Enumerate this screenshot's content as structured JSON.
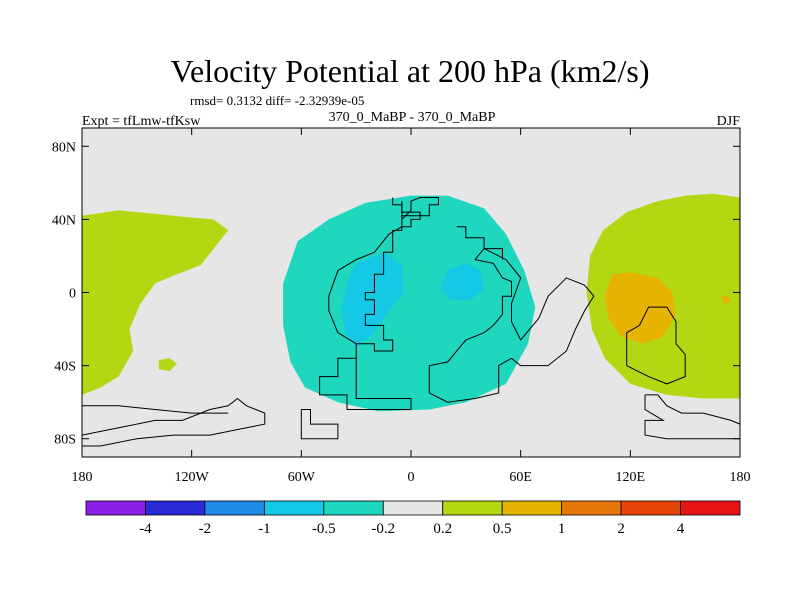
{
  "chart_data": {
    "type": "contour-map",
    "title": "Velocity Potential at 200 hPa (km2/s)",
    "stats_text": "rmsd= 0.3132 diff= -2.32939e-05",
    "left_label": "Expt = tfLmw-tfKsw",
    "center_label": "370_0_MaBP - 370_0_MaBP",
    "right_label": "DJF",
    "x_ticks": [
      "180",
      "120W",
      "60W",
      "0",
      "60E",
      "120E",
      "180"
    ],
    "x_tick_values": [
      -180,
      -120,
      -60,
      0,
      60,
      120,
      180
    ],
    "y_ticks": [
      "80N",
      "40N",
      "0",
      "40S",
      "80S"
    ],
    "y_tick_values": [
      80,
      40,
      0,
      -40,
      -80
    ],
    "lon_range": [
      -180,
      180
    ],
    "lat_range": [
      -90,
      90
    ],
    "colorbar": {
      "levels": [
        "-4",
        "-2",
        "-1",
        "-0.5",
        "-0.2",
        "0.2",
        "0.5",
        "1",
        "2",
        "4"
      ],
      "colors": [
        "#8c1ee6",
        "#2a2ad6",
        "#1e8ce6",
        "#14c8e6",
        "#1ed7be",
        "#e6e6e6",
        "#b4d714",
        "#e6b400",
        "#e6780a",
        "#e6460a",
        "#e61414"
      ]
    },
    "regions": [
      {
        "name": "positive-0.2-0.5-west",
        "color": "#b4d714",
        "points": [
          [
            -180,
            42
          ],
          [
            -160,
            45
          ],
          [
            -140,
            43
          ],
          [
            -120,
            41
          ],
          [
            -108,
            40
          ],
          [
            -100,
            34
          ],
          [
            -108,
            24
          ],
          [
            -115,
            15
          ],
          [
            -128,
            10
          ],
          [
            -140,
            5
          ],
          [
            -148,
            -6
          ],
          [
            -154,
            -20
          ],
          [
            -152,
            -32
          ],
          [
            -160,
            -46
          ],
          [
            -170,
            -52
          ],
          [
            -180,
            -56
          ]
        ]
      },
      {
        "name": "positive-0.2-0.5-east",
        "color": "#b4d714",
        "points": [
          [
            180,
            52
          ],
          [
            165,
            54
          ],
          [
            150,
            53
          ],
          [
            135,
            50
          ],
          [
            118,
            44
          ],
          [
            105,
            34
          ],
          [
            98,
            20
          ],
          [
            96,
            0
          ],
          [
            99,
            -20
          ],
          [
            106,
            -36
          ],
          [
            120,
            -50
          ],
          [
            140,
            -56
          ],
          [
            160,
            -58
          ],
          [
            180,
            -58
          ]
        ]
      },
      {
        "name": "positive-0.2-0.5-spot",
        "color": "#b4d714",
        "points": [
          [
            -138,
            -37
          ],
          [
            -132,
            -36
          ],
          [
            -128,
            -39
          ],
          [
            -132,
            -43
          ],
          [
            -138,
            -42
          ]
        ]
      },
      {
        "name": "positive-0.5-1",
        "color": "#e6b400",
        "points": [
          [
            110,
            10
          ],
          [
            120,
            11
          ],
          [
            135,
            8
          ],
          [
            143,
            0
          ],
          [
            145,
            -12
          ],
          [
            138,
            -24
          ],
          [
            127,
            -28
          ],
          [
            115,
            -24
          ],
          [
            108,
            -14
          ],
          [
            106,
            -2
          ]
        ]
      },
      {
        "name": "positive-0.5-1-spot",
        "color": "#e6b400",
        "points": [
          [
            170,
            -2
          ],
          [
            174,
            -2
          ],
          [
            175,
            -5
          ],
          [
            171,
            -6
          ]
        ]
      },
      {
        "name": "negative-0.2-0.5",
        "color": "#1ed7be",
        "points": [
          [
            -70,
            5
          ],
          [
            -62,
            28
          ],
          [
            -45,
            40
          ],
          [
            -25,
            49
          ],
          [
            0,
            53
          ],
          [
            20,
            53
          ],
          [
            40,
            46
          ],
          [
            52,
            32
          ],
          [
            62,
            12
          ],
          [
            68,
            -8
          ],
          [
            64,
            -28
          ],
          [
            52,
            -50
          ],
          [
            30,
            -60
          ],
          [
            10,
            -64
          ],
          [
            -18,
            -65
          ],
          [
            -40,
            -60
          ],
          [
            -58,
            -52
          ],
          [
            -66,
            -38
          ],
          [
            -70,
            -18
          ]
        ]
      },
      {
        "name": "negative-0.5-1-a",
        "color": "#14c8e6",
        "points": [
          [
            -30,
            16
          ],
          [
            -15,
            22
          ],
          [
            -5,
            15
          ],
          [
            -4,
            0
          ],
          [
            -12,
            -10
          ],
          [
            -22,
            -24
          ],
          [
            -30,
            -30
          ],
          [
            -36,
            -22
          ],
          [
            -38,
            -8
          ],
          [
            -34,
            8
          ]
        ]
      },
      {
        "name": "negative-0.5-1-b",
        "color": "#14c8e6",
        "points": [
          [
            20,
            12
          ],
          [
            30,
            16
          ],
          [
            38,
            12
          ],
          [
            40,
            2
          ],
          [
            33,
            -4
          ],
          [
            22,
            -4
          ],
          [
            16,
            2
          ]
        ]
      }
    ],
    "coastlines": [
      {
        "name": "americas-outline",
        "points": [
          [
            -5,
            50
          ],
          [
            -5,
            42
          ],
          [
            10,
            42
          ],
          [
            10,
            48
          ],
          [
            15,
            48
          ],
          [
            15,
            52
          ],
          [
            5,
            52
          ],
          [
            0,
            50
          ],
          [
            0,
            45
          ],
          [
            -5,
            40
          ],
          [
            -5,
            34
          ],
          [
            -10,
            34
          ],
          [
            -10,
            22
          ],
          [
            -15,
            22
          ],
          [
            -15,
            10
          ],
          [
            -20,
            10
          ],
          [
            -20,
            0
          ],
          [
            -25,
            0
          ],
          [
            -25,
            -4
          ],
          [
            -20,
            -4
          ],
          [
            -20,
            -12
          ],
          [
            -25,
            -12
          ],
          [
            -25,
            -18
          ],
          [
            -15,
            -18
          ],
          [
            -15,
            -26
          ],
          [
            -10,
            -26
          ],
          [
            -10,
            -32
          ],
          [
            -20,
            -32
          ],
          [
            -20,
            -28
          ],
          [
            -30,
            -28
          ],
          [
            -30,
            -36
          ],
          [
            -40,
            -36
          ],
          [
            -40,
            -46
          ],
          [
            -50,
            -46
          ],
          [
            -50,
            -56
          ],
          [
            -35,
            -56
          ],
          [
            -35,
            -64
          ],
          [
            0,
            -64
          ],
          [
            0,
            -58
          ],
          [
            -30,
            -58
          ],
          [
            -30,
            -50
          ],
          [
            -30,
            -28
          ],
          [
            -40,
            -22
          ],
          [
            -45,
            -10
          ],
          [
            -45,
            -2
          ],
          [
            -40,
            12
          ],
          [
            -30,
            18
          ],
          [
            -20,
            22
          ],
          [
            -12,
            32
          ],
          [
            -5,
            36
          ],
          [
            -5,
            50
          ]
        ]
      },
      {
        "name": "east-continent-outline",
        "points": [
          [
            35,
            18
          ],
          [
            45,
            16
          ],
          [
            50,
            8
          ],
          [
            55,
            6
          ],
          [
            55,
            -2
          ],
          [
            50,
            -2
          ],
          [
            50,
            -12
          ],
          [
            45,
            -18
          ],
          [
            40,
            -22
          ],
          [
            30,
            -26
          ],
          [
            20,
            -38
          ],
          [
            10,
            -40
          ],
          [
            10,
            -55
          ],
          [
            20,
            -60
          ],
          [
            35,
            -58
          ],
          [
            48,
            -55
          ],
          [
            48,
            -40
          ],
          [
            55,
            -36
          ],
          [
            60,
            -40
          ],
          [
            75,
            -40
          ],
          [
            85,
            -32
          ],
          [
            90,
            -20
          ],
          [
            95,
            -10
          ],
          [
            100,
            -2
          ],
          [
            95,
            4
          ],
          [
            85,
            8
          ],
          [
            75,
            -2
          ],
          [
            70,
            -14
          ],
          [
            60,
            -26
          ],
          [
            55,
            -16
          ],
          [
            55,
            -6
          ],
          [
            60,
            8
          ],
          [
            52,
            18
          ],
          [
            40,
            24
          ],
          [
            35,
            18
          ]
        ]
      },
      {
        "name": "east-australia-outline",
        "points": [
          [
            118,
            -40
          ],
          [
            118,
            -22
          ],
          [
            125,
            -18
          ],
          [
            130,
            -8
          ],
          [
            140,
            -8
          ],
          [
            145,
            -16
          ],
          [
            145,
            -28
          ],
          [
            150,
            -34
          ],
          [
            150,
            -46
          ],
          [
            140,
            -50
          ],
          [
            130,
            -46
          ],
          [
            118,
            -40
          ]
        ]
      },
      {
        "name": "southeast-coast",
        "points": [
          [
            128,
            -56
          ],
          [
            135,
            -56
          ],
          [
            140,
            -62
          ],
          [
            148,
            -66
          ],
          [
            160,
            -66
          ],
          [
            175,
            -70
          ],
          [
            180,
            -72
          ],
          [
            180,
            -80
          ],
          [
            160,
            -80
          ],
          [
            140,
            -80
          ],
          [
            128,
            -78
          ],
          [
            128,
            -70
          ],
          [
            138,
            -70
          ],
          [
            128,
            -64
          ],
          [
            128,
            -56
          ]
        ]
      },
      {
        "name": "southwest-coast",
        "points": [
          [
            -180,
            -78
          ],
          [
            -160,
            -74
          ],
          [
            -140,
            -70
          ],
          [
            -125,
            -70
          ],
          [
            -110,
            -64
          ],
          [
            -100,
            -62
          ],
          [
            -95,
            -58
          ],
          [
            -90,
            -62
          ],
          [
            -80,
            -66
          ],
          [
            -80,
            -72
          ],
          [
            -90,
            -74
          ],
          [
            -110,
            -78
          ],
          [
            -130,
            -78
          ],
          [
            -150,
            -80
          ],
          [
            -170,
            -84
          ],
          [
            -180,
            -84
          ]
        ]
      },
      {
        "name": "southwest-islands",
        "points": [
          [
            -180,
            -62
          ],
          [
            -160,
            -62
          ],
          [
            -140,
            -64
          ],
          [
            -120,
            -66
          ],
          [
            -100,
            -66
          ]
        ]
      },
      {
        "name": "south-mid-coast",
        "points": [
          [
            -60,
            -64
          ],
          [
            -55,
            -64
          ],
          [
            -55,
            -72
          ],
          [
            -40,
            -72
          ],
          [
            -40,
            -80
          ],
          [
            -60,
            -80
          ],
          [
            -60,
            -64
          ]
        ]
      },
      {
        "name": "north-boxes",
        "points": [
          [
            -10,
            52
          ],
          [
            -10,
            48
          ],
          [
            -5,
            48
          ],
          [
            -5,
            44
          ],
          [
            5,
            44
          ],
          [
            5,
            40
          ],
          [
            0,
            40
          ],
          [
            0,
            36
          ],
          [
            -5,
            36
          ]
        ]
      },
      {
        "name": "east-boxes",
        "points": [
          [
            25,
            36
          ],
          [
            30,
            36
          ],
          [
            30,
            30
          ],
          [
            40,
            30
          ],
          [
            40,
            24
          ],
          [
            50,
            24
          ],
          [
            50,
            18
          ]
        ]
      }
    ]
  }
}
